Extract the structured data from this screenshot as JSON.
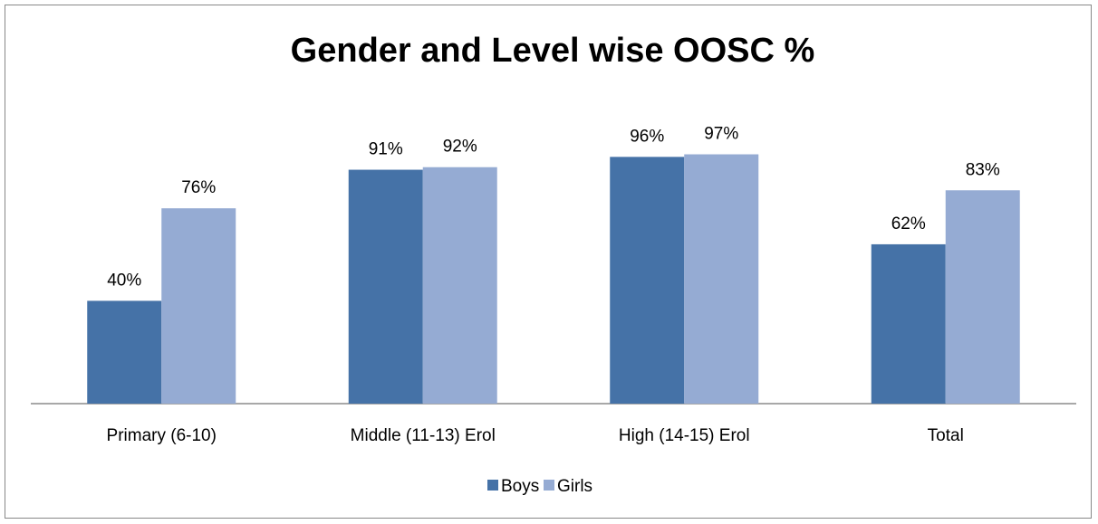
{
  "chart_data": {
    "type": "bar",
    "title": "Gender and Level wise OOSC %",
    "categories": [
      "Primary (6-10)",
      "Middle (11-13) Erol",
      "High (14-15) Erol",
      "Total"
    ],
    "series": [
      {
        "name": "Boys",
        "values": [
          40,
          91,
          96,
          62
        ],
        "labels": [
          "40%",
          "91%",
          "96%",
          "62%"
        ],
        "color": "#4572A7"
      },
      {
        "name": "Girls",
        "values": [
          76,
          92,
          97,
          83
        ],
        "labels": [
          "76%",
          "92%",
          "97%",
          "83%"
        ],
        "color": "#95ABD3"
      }
    ],
    "ylim": [
      0,
      100
    ],
    "grid": false,
    "legend_position": "bottom"
  }
}
